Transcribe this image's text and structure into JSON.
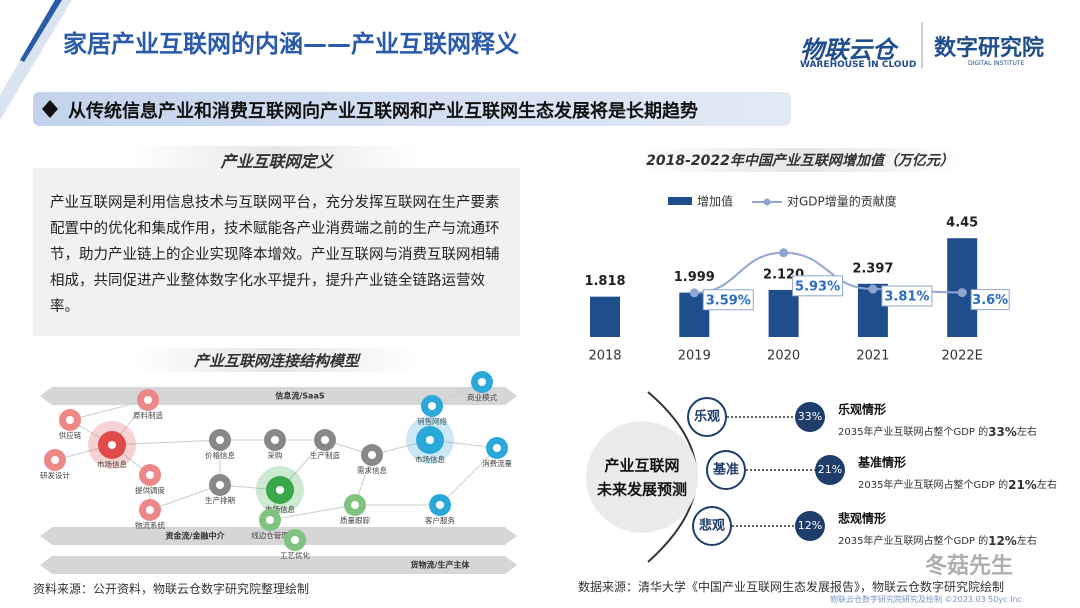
{
  "header": {
    "title": "家居产业互联网的内涵——产业互联网释义",
    "logo1": "物联云仓",
    "logo1_sub": "WAREHOUSE IN CLOUD",
    "logo2": "数字研究院",
    "logo2_sub": "DIGITAL INSTITUTE"
  },
  "banner": "从传统信息产业和消费互联网向产业互联网和产业互联网生态发展将是长期趋势",
  "definition": {
    "title": "产业互联网定义",
    "body": "产业互联网是利用信息技术与互联网平台，充分发挥互联网在生产要素配置中的优化和集成作用，技术赋能各产业消费端之前的生产与流通环节，助力产业链上的企业实现降本增效。产业互联网与消费互联网相辅相成，共同促进产业整体数字化水平提升，提升产业链全链路运营效率。"
  },
  "model": {
    "title": "产业互联网连接结构模型",
    "flows": [
      "信息流/SaaS",
      "资金流/金融中介",
      "货物流/生产主体"
    ],
    "nodes": [
      "供应链",
      "原料制造",
      "市场信息",
      "价格信息",
      "采购",
      "生产制造",
      "销售网络",
      "商业模式",
      "市场信息",
      "消费流量",
      "提供调度",
      "市场信息",
      "需求信息",
      "研发设计",
      "物流系统",
      "生产排期",
      "线边仓管理",
      "质量跟踪",
      "客户服务",
      "工艺优化"
    ]
  },
  "chart_data": {
    "type": "bar_line",
    "title": "2018-2022年中国产业互联网增加值（万亿元）",
    "categories": [
      "2018",
      "2019",
      "2020",
      "2021",
      "2022E"
    ],
    "series": [
      {
        "name": "增加值",
        "color": "#1f4e8c",
        "values": [
          1.818,
          1.999,
          2.12,
          2.397,
          4.45
        ],
        "value_labels": [
          "1.818",
          "1.999",
          "2.120",
          "2.397",
          "4.45"
        ]
      },
      {
        "name": "对GDP增量的贡献度",
        "color": "#8fa6d3",
        "axis": "y2",
        "values": [
          null,
          3.59,
          5.93,
          3.81,
          3.6
        ],
        "value_labels": [
          null,
          "3.59%",
          "5.93%",
          "3.81%",
          "3.6%"
        ]
      }
    ],
    "ylim": [
      0,
      5
    ],
    "y2lim": [
      1,
      7.5
    ]
  },
  "forecast": {
    "center": [
      "产业互联网",
      "未来发展预测"
    ],
    "scenarios": [
      {
        "tag": "乐观",
        "pct": "33%",
        "title": "乐观情形",
        "desc": "2035年产业互联网占整个GDP 的",
        "desc_pct": "33%",
        "desc_end": "左右"
      },
      {
        "tag": "基准",
        "pct": "21%",
        "title": "基准情形",
        "desc": "2035年产业互联网占整个GDP 的",
        "desc_pct": "21%",
        "desc_end": "左右"
      },
      {
        "tag": "悲观",
        "pct": "12%",
        "title": "悲观情形",
        "desc": "2035年产业互联网占整个GDP 的",
        "desc_pct": "12%",
        "desc_end": "左右"
      }
    ]
  },
  "footer": {
    "source_left": "资料来源：公开资料，物联云仓数字研究院整理绘制",
    "source_right": "数据来源：清华大学《中国产业互联网生态发展报告》，物联云仓数字研究院绘制",
    "watermark": "冬菇先生",
    "copyright": "物联云仓数字研究院研究及绘制 ©2023.03 50yc Inc"
  }
}
